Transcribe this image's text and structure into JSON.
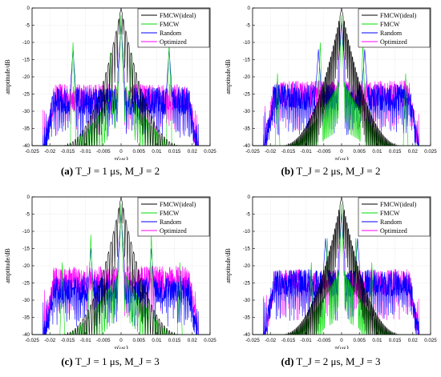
{
  "common": {
    "ylabel": "amptitude/dB",
    "xlabel": "τ(μs)",
    "xticks": [
      "-0.025",
      "-0.02",
      "-0.015",
      "-0.01",
      "-0.005",
      "0",
      "0.005",
      "0.01",
      "0.015",
      "0.02",
      "0.025"
    ],
    "yticks": [
      "0",
      "-5",
      "-10",
      "-15",
      "-20",
      "-25",
      "-30",
      "-35",
      "-40"
    ],
    "legend": [
      "FMCW(ideal)",
      "FMCW",
      "Random",
      "Optimized"
    ],
    "colors": {
      "FMCW(ideal)": "#000000",
      "FMCW": "#00dd00",
      "Random": "#0000ff",
      "Optimized": "#ff00ff"
    }
  },
  "captions": [
    {
      "tag": "(a)",
      "text": "T_J = 1 μs, M_J = 2"
    },
    {
      "tag": "(b)",
      "text": "T_J = 2 μs, M_J = 2"
    },
    {
      "tag": "(c)",
      "text": "T_J = 1 μs, M_J = 3"
    },
    {
      "tag": "(d)",
      "text": "T_J = 2 μs, M_J = 3"
    }
  ],
  "chart_data": [
    {
      "type": "line",
      "xlim": [
        -0.025,
        0.025
      ],
      "ylim": [
        -40,
        0
      ],
      "grid": true,
      "legend_position": "top-right",
      "series": [
        {
          "name": "FMCW(ideal)",
          "peaks": [
            [
              0,
              0
            ]
          ],
          "envelope": "narrow triangle from -40 at ±0.017 to 0 at 0"
        },
        {
          "name": "FMCW",
          "peaks": [
            [
              0,
              -2
            ],
            [
              -0.0135,
              -10
            ],
            [
              0.0135,
              -10
            ],
            [
              -0.003,
              -13
            ],
            [
              0.003,
              -13
            ]
          ],
          "floor": -40
        },
        {
          "name": "Random",
          "peaks": [
            [
              0,
              -5
            ],
            [
              -0.0135,
              -12
            ],
            [
              0.0135,
              -12
            ]
          ],
          "sidelobe_level": -20,
          "extent": 0.022
        },
        {
          "name": "Optimized",
          "peaks": [
            [
              0,
              -5
            ]
          ],
          "sidelobe_level": -19,
          "extent": 0.022
        }
      ]
    },
    {
      "type": "line",
      "xlim": [
        -0.025,
        0.025
      ],
      "ylim": [
        -40,
        0
      ],
      "grid": true,
      "legend_position": "top-right",
      "series": [
        {
          "name": "FMCW(ideal)",
          "peaks": [
            [
              0,
              0
            ]
          ],
          "envelope": "narrow triangle from -40 at ±0.017 to 0 at 0"
        },
        {
          "name": "FMCW",
          "peaks": [
            [
              0,
              -2
            ],
            [
              -0.006,
              -10
            ],
            [
              0.006,
              -10
            ],
            [
              -0.018,
              -19
            ],
            [
              0.018,
              -19
            ]
          ],
          "floor": -40
        },
        {
          "name": "Random",
          "peaks": [
            [
              0,
              -4
            ],
            [
              -0.0065,
              -12
            ],
            [
              0.0065,
              -12
            ]
          ],
          "sidelobe_level": -19,
          "extent": 0.022
        },
        {
          "name": "Optimized",
          "peaks": [
            [
              0,
              -3
            ]
          ],
          "sidelobe_level": -18,
          "extent": 0.022
        }
      ]
    },
    {
      "type": "line",
      "xlim": [
        -0.025,
        0.025
      ],
      "ylim": [
        -40,
        0
      ],
      "grid": true,
      "legend_position": "top-right",
      "series": [
        {
          "name": "FMCW(ideal)",
          "peaks": [
            [
              0,
              0
            ]
          ],
          "envelope": "narrow triangle from -40 at ±0.017 to 0 at 0"
        },
        {
          "name": "FMCW",
          "peaks": [
            [
              0,
              -2
            ],
            [
              -0.0085,
              -11
            ],
            [
              0.0085,
              -11
            ],
            [
              -0.0165,
              -19
            ],
            [
              0.0165,
              -19
            ]
          ],
          "floor": -40
        },
        {
          "name": "Random",
          "peaks": [
            [
              0,
              -5
            ],
            [
              -0.0085,
              -15
            ],
            [
              0.0085,
              -15
            ]
          ],
          "sidelobe_level": -20,
          "extent": 0.022
        },
        {
          "name": "Optimized",
          "peaks": [
            [
              0,
              -5
            ]
          ],
          "sidelobe_level": -17,
          "extent": 0.022
        }
      ]
    },
    {
      "type": "line",
      "xlim": [
        -0.025,
        0.025
      ],
      "ylim": [
        -40,
        0
      ],
      "grid": true,
      "legend_position": "top-right",
      "series": [
        {
          "name": "FMCW(ideal)",
          "peaks": [
            [
              0,
              0
            ]
          ],
          "envelope": "narrow triangle from -40 at ±0.017 to 0 at 0"
        },
        {
          "name": "FMCW",
          "peaks": [
            [
              0,
              -2
            ],
            [
              -0.004,
              -12
            ],
            [
              0.004,
              -12
            ],
            [
              -0.0085,
              -19
            ],
            [
              0.0085,
              -19
            ]
          ],
          "floor": -40
        },
        {
          "name": "Random",
          "peaks": [
            [
              0,
              -5
            ],
            [
              -0.0045,
              -12
            ],
            [
              0.0045,
              -12
            ]
          ],
          "sidelobe_level": -18,
          "extent": 0.022
        },
        {
          "name": "Optimized",
          "peaks": [
            [
              0,
              -4
            ]
          ],
          "sidelobe_level": -18,
          "extent": 0.022
        }
      ]
    }
  ]
}
